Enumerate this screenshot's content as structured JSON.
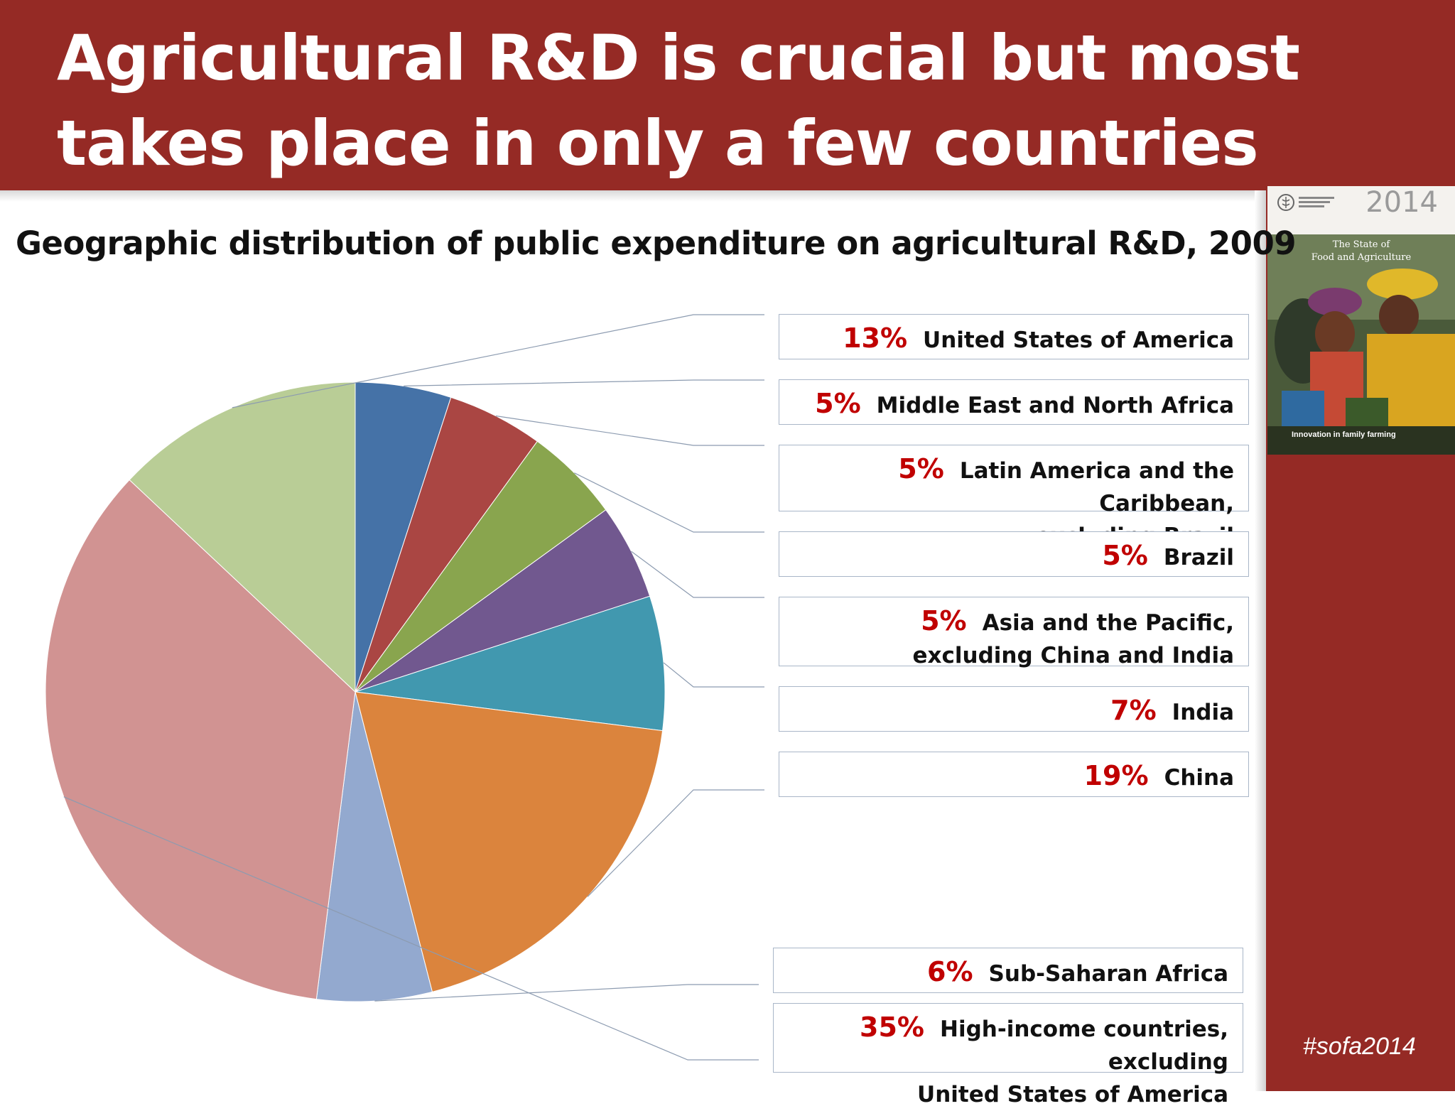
{
  "slide": {
    "title": "Agricultural R&D is crucial but most\ntakes place in only a few countries",
    "hashtag": "#sofa2014",
    "colors": {
      "header": "#952a25",
      "pct_text": "#c00000"
    }
  },
  "cover": {
    "year": "2014",
    "title_line1": "The State of",
    "title_line2": "Food and Agriculture",
    "caption": "Innovation in family farming",
    "logo_icon": "fao-logo-icon"
  },
  "chart_data": {
    "type": "pie",
    "title": "Geographic distribution of public expenditure on agricultural R&D, 2009",
    "label_format": "{pct}%",
    "slices": [
      {
        "label": "Middle East and North Africa",
        "pct": 5,
        "color": "#4572a7"
      },
      {
        "label": "Latin America and the Caribbean,\nexcluding Brazil",
        "pct": 5,
        "color": "#aa4643"
      },
      {
        "label": "Brazil",
        "pct": 5,
        "color": "#89a54e"
      },
      {
        "label": "Asia and the Pacific,\nexcluding China and India",
        "pct": 5,
        "color": "#71588f"
      },
      {
        "label": "India",
        "pct": 7,
        "color": "#4198af"
      },
      {
        "label": "China",
        "pct": 19,
        "color": "#db843d"
      },
      {
        "label": "Sub-Saharan Africa",
        "pct": 6,
        "color": "#93a9cf"
      },
      {
        "label": "High-income countries, excluding\nUnited States of America",
        "pct": 35,
        "color": "#d19392"
      },
      {
        "label": "United States of America",
        "pct": 13,
        "color": "#b9cd96"
      }
    ],
    "legend_order": [
      8,
      0,
      1,
      2,
      3,
      4,
      5,
      6,
      7
    ]
  }
}
